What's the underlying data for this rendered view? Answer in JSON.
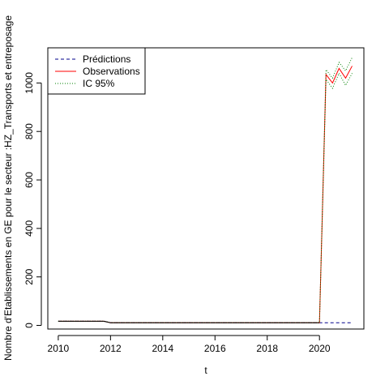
{
  "chart_data": {
    "type": "line",
    "title": "",
    "xlabel": "t",
    "ylabel": "Nombre d'Etablissements en GE pour le secteur :HZ_Transports et entreposage",
    "xlim": [
      2009.6,
      2021.7
    ],
    "ylim": [
      -15,
      1145
    ],
    "x_ticks": [
      2010,
      2012,
      2014,
      2016,
      2018,
      2020
    ],
    "y_ticks": [
      0,
      200,
      400,
      600,
      800,
      1000
    ],
    "legend": {
      "position": "top-left"
    },
    "series": [
      {
        "name": "Prédictions",
        "color": "#00008B",
        "style": "dashed",
        "x": [
          2010.0,
          2011.75,
          2012.0,
          2020.0,
          2021.25
        ],
        "y": [
          17,
          17,
          11,
          11,
          11
        ]
      },
      {
        "name": "Observations",
        "color": "#FF0000",
        "style": "solid",
        "x": [
          2010.0,
          2011.75,
          2012.0,
          2020.0,
          2020.25,
          2020.5,
          2020.75,
          2021.0,
          2021.25
        ],
        "y": [
          17,
          17,
          11,
          11,
          1035,
          1000,
          1060,
          1020,
          1070
        ]
      },
      {
        "name": "IC 95%",
        "color": "#008000",
        "style": "dotted",
        "x": [
          2010.0,
          2011.75,
          2012.0,
          2020.0,
          2020.25,
          2020.5,
          2020.75,
          2021.0,
          2021.25
        ],
        "y_upper": [
          17,
          17,
          11,
          11,
          1055,
          1020,
          1085,
          1050,
          1105
        ],
        "y_lower": [
          17,
          17,
          11,
          11,
          1015,
          978,
          1040,
          990,
          1040
        ]
      }
    ]
  }
}
